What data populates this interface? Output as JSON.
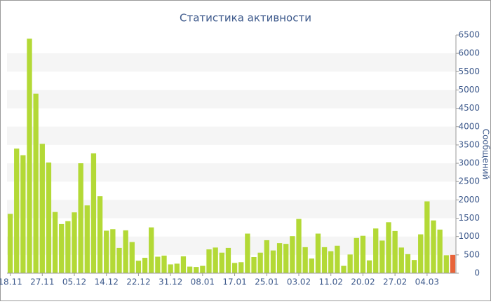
{
  "chart_data": {
    "type": "bar",
    "title": "Статистика активности",
    "y_label": "Сообщений",
    "categories": [
      "18.11",
      null,
      null,
      null,
      null,
      "27.11",
      null,
      null,
      null,
      null,
      "05.12",
      null,
      null,
      null,
      null,
      "14.12",
      null,
      null,
      null,
      null,
      "22.12",
      null,
      null,
      null,
      null,
      "31.12",
      null,
      null,
      null,
      null,
      "08.01",
      null,
      null,
      null,
      null,
      "17.01",
      null,
      null,
      null,
      null,
      "25.01",
      null,
      null,
      null,
      null,
      "03.02",
      null,
      null,
      null,
      null,
      "11.02",
      null,
      null,
      null,
      null,
      "20.02",
      null,
      null,
      null,
      null,
      "27.02",
      null,
      null,
      null,
      null,
      "04.03",
      null,
      null,
      null,
      null
    ],
    "values": [
      1620,
      3400,
      3220,
      6400,
      4900,
      3530,
      3020,
      1670,
      1340,
      1420,
      1660,
      3000,
      1850,
      3270,
      2100,
      1160,
      1200,
      690,
      1170,
      850,
      340,
      420,
      1250,
      450,
      480,
      240,
      260,
      460,
      180,
      170,
      200,
      650,
      700,
      560,
      690,
      280,
      300,
      1080,
      440,
      560,
      900,
      620,
      820,
      800,
      1010,
      1480,
      710,
      400,
      1080,
      710,
      600,
      750,
      200,
      510,
      960,
      1020,
      350,
      1220,
      890,
      1390,
      1150,
      700,
      520,
      360,
      1060,
      1960,
      1440,
      1190,
      490,
      500
    ],
    "colors": [
      "#b3d936",
      "#b3d936",
      "#b3d936",
      "#b3d936",
      "#b3d936",
      "#b3d936",
      "#b3d936",
      "#b3d936",
      "#b3d936",
      "#b3d936",
      "#b3d936",
      "#b3d936",
      "#b3d936",
      "#b3d936",
      "#b3d936",
      "#b3d936",
      "#b3d936",
      "#b3d936",
      "#b3d936",
      "#b3d936",
      "#b3d936",
      "#b3d936",
      "#b3d936",
      "#b3d936",
      "#b3d936",
      "#b3d936",
      "#b3d936",
      "#b3d936",
      "#b3d936",
      "#b3d936",
      "#b3d936",
      "#b3d936",
      "#b3d936",
      "#b3d936",
      "#b3d936",
      "#b3d936",
      "#b3d936",
      "#b3d936",
      "#b3d936",
      "#b3d936",
      "#b3d936",
      "#b3d936",
      "#b3d936",
      "#b3d936",
      "#b3d936",
      "#b3d936",
      "#b3d936",
      "#b3d936",
      "#b3d936",
      "#b3d936",
      "#b3d936",
      "#b3d936",
      "#b3d936",
      "#b3d936",
      "#b3d936",
      "#b3d936",
      "#b3d936",
      "#b3d936",
      "#b3d936",
      "#b3d936",
      "#b3d936",
      "#b3d936",
      "#b3d936",
      "#b3d936",
      "#b3d936",
      "#b3d936",
      "#b3d936",
      "#b3d936",
      "#b3d936",
      "#e8643a"
    ],
    "ylim": [
      0,
      6500
    ],
    "yticks": [
      0,
      500,
      1000,
      1500,
      2000,
      2500,
      3000,
      3500,
      4000,
      4500,
      5000,
      5500,
      6000,
      6500
    ],
    "grid": "bands",
    "y_axis_side": "right"
  }
}
